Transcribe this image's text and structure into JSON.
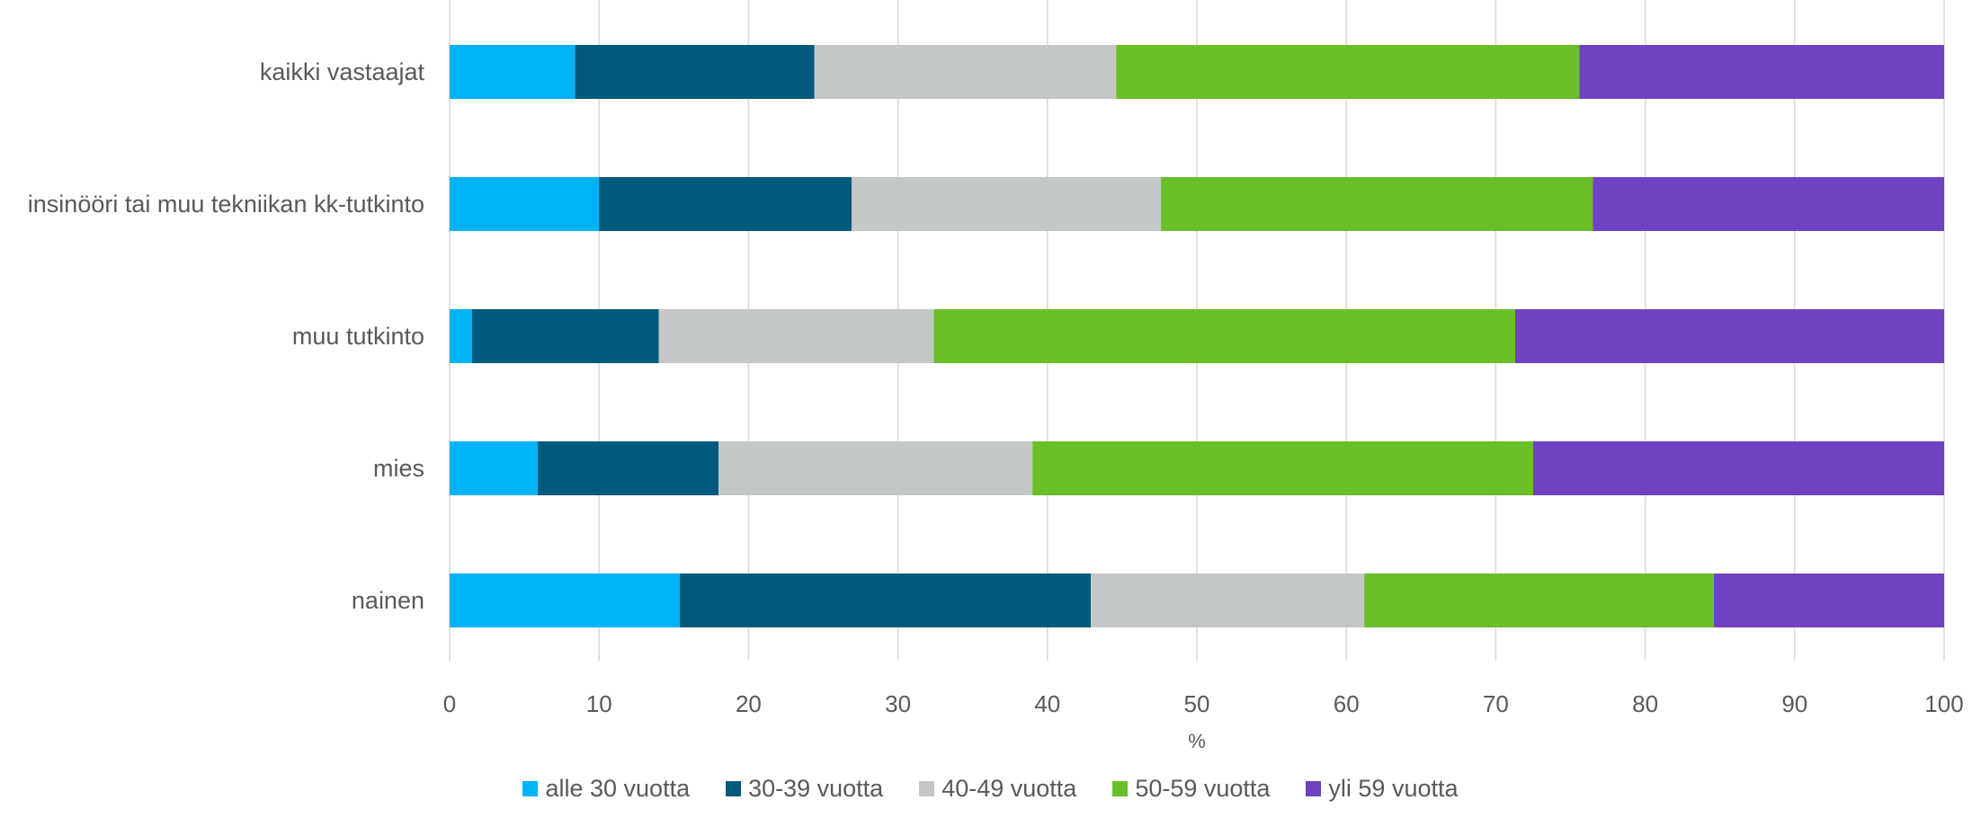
{
  "chart_data": {
    "type": "bar",
    "orientation": "horizontal",
    "stacked": true,
    "categories": [
      "kaikki vastaajat",
      "insinööri tai muu tekniikan kk-tutkinto",
      "muu tutkinto",
      "mies",
      "nainen"
    ],
    "series": [
      {
        "name": "alle 30 vuotta",
        "color": "#00b3f5",
        "values": [
          8.4,
          10.0,
          1.5,
          5.9,
          15.4
        ]
      },
      {
        "name": "30-39 vuotta",
        "color": "#005a7c",
        "values": [
          16.0,
          16.9,
          12.5,
          12.1,
          27.5
        ]
      },
      {
        "name": "40-49 vuotta",
        "color": "#c3c8c7",
        "values": [
          20.2,
          20.7,
          18.4,
          21.0,
          18.3
        ]
      },
      {
        "name": "50-59 vuotta",
        "color": "#6abe28",
        "values": [
          31.0,
          28.9,
          38.9,
          33.5,
          23.4
        ]
      },
      {
        "name": "yli 59 vuotta",
        "color": "#7041c0",
        "values": [
          24.4,
          23.5,
          28.7,
          27.5,
          15.4
        ]
      }
    ],
    "xlabel": "%",
    "xlim": [
      0,
      100
    ],
    "xticks": [
      "0",
      "10",
      "20",
      "30",
      "40",
      "50",
      "60",
      "70",
      "80",
      "90",
      "100"
    ],
    "grid": "vertical",
    "legend_position": "bottom"
  }
}
